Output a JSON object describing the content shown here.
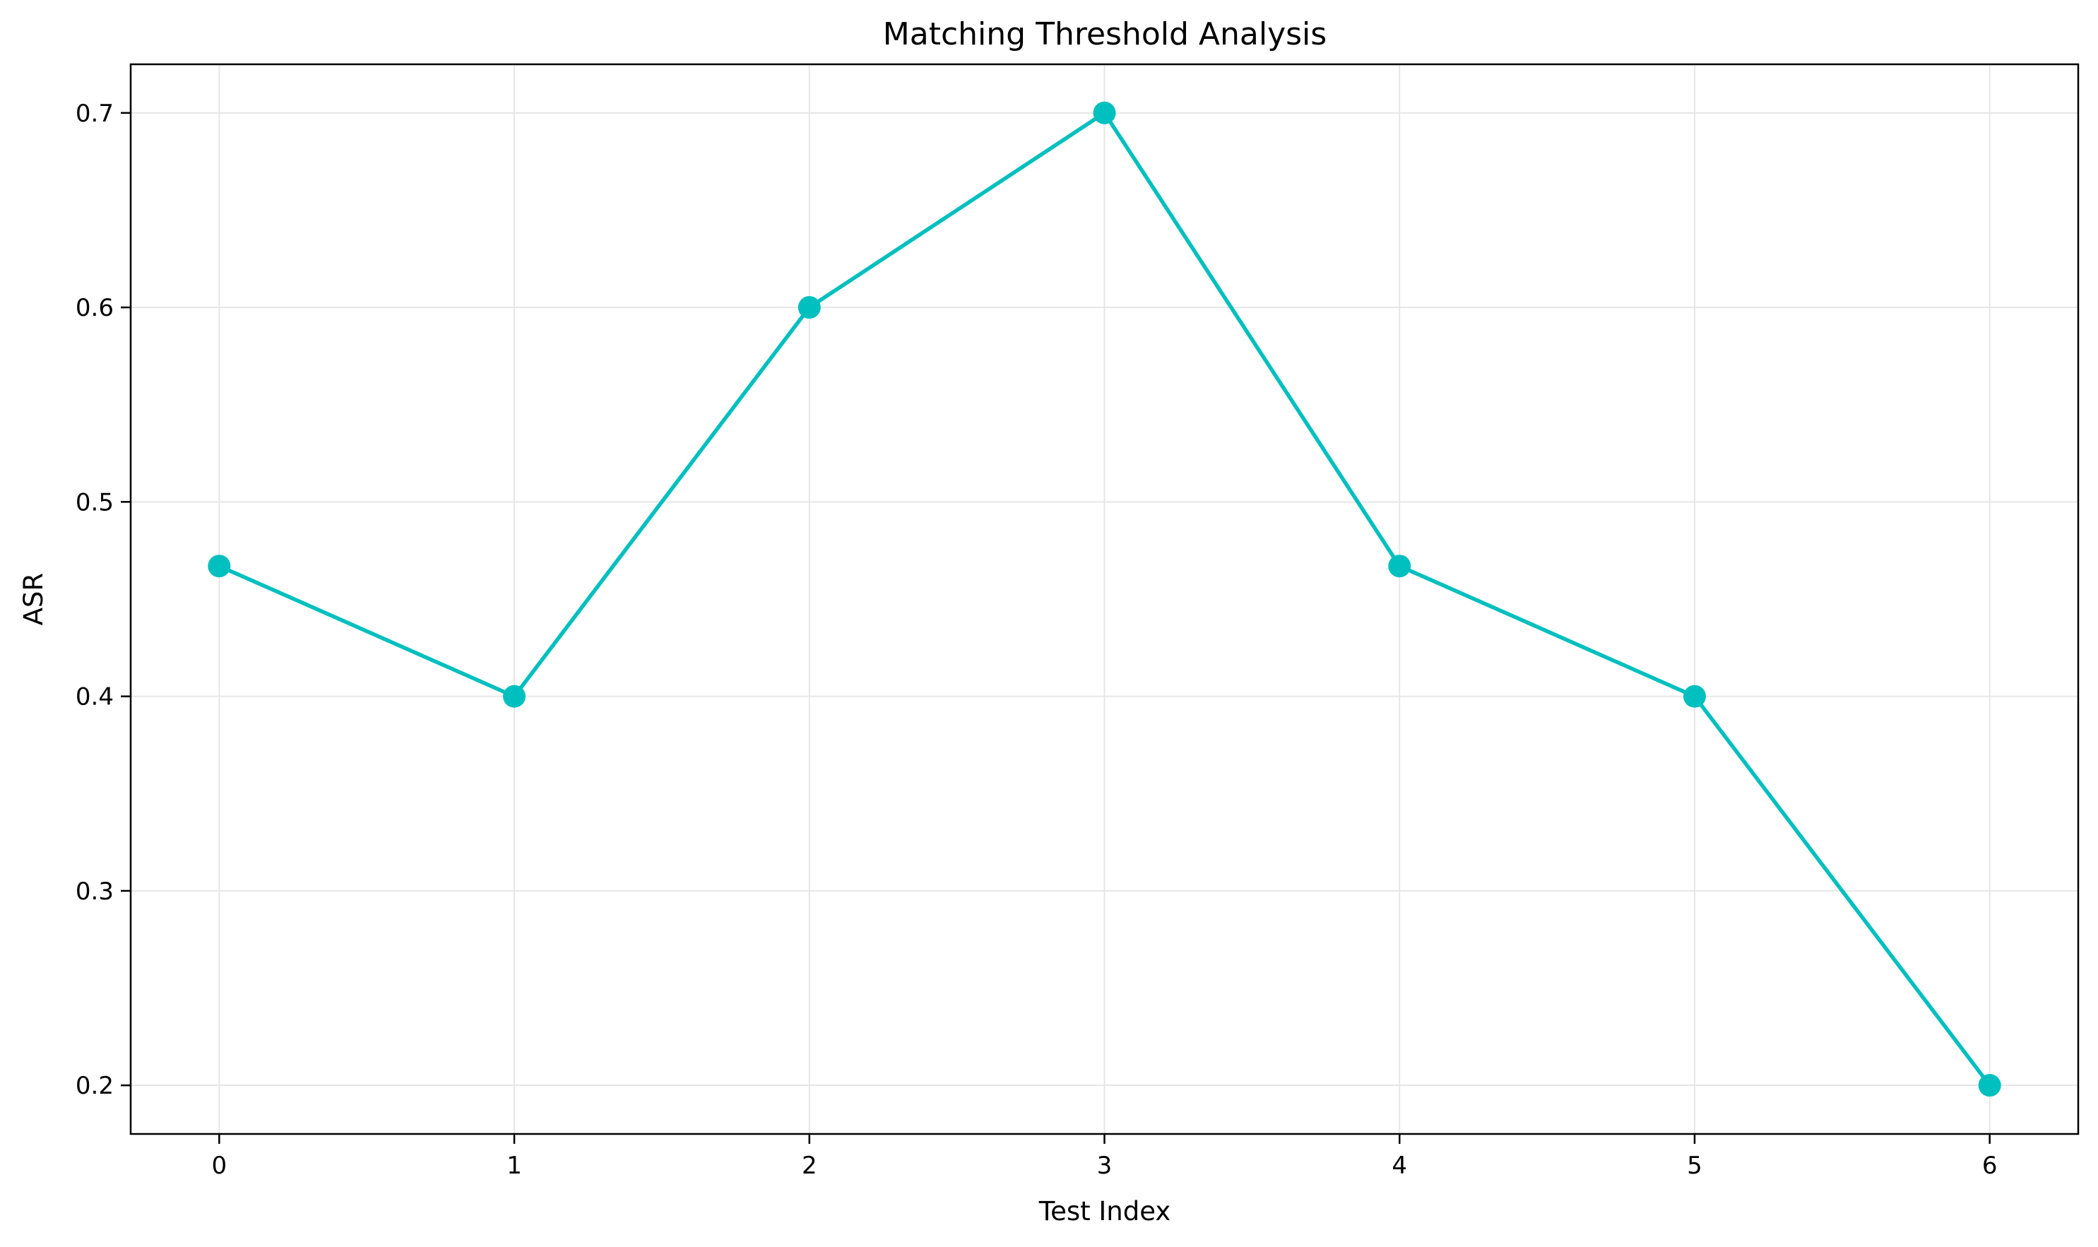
{
  "chart_data": {
    "type": "line",
    "title": "Matching Threshold Analysis",
    "xlabel": "Test Index",
    "ylabel": "ASR",
    "x": [
      0,
      1,
      2,
      3,
      4,
      5,
      6
    ],
    "series": [
      {
        "values": [
          0.467,
          0.4,
          0.6,
          0.7,
          0.467,
          0.4,
          0.2
        ],
        "color": "#00bfbf",
        "marker": "circle"
      }
    ],
    "xlim": [
      -0.3,
      6.3
    ],
    "ylim": [
      0.175,
      0.725
    ],
    "xticks": [
      "0",
      "1",
      "2",
      "3",
      "4",
      "5",
      "6"
    ],
    "yticks": [
      "0.2",
      "0.3",
      "0.4",
      "0.5",
      "0.6",
      "0.7"
    ],
    "grid": true,
    "legend": "none"
  }
}
